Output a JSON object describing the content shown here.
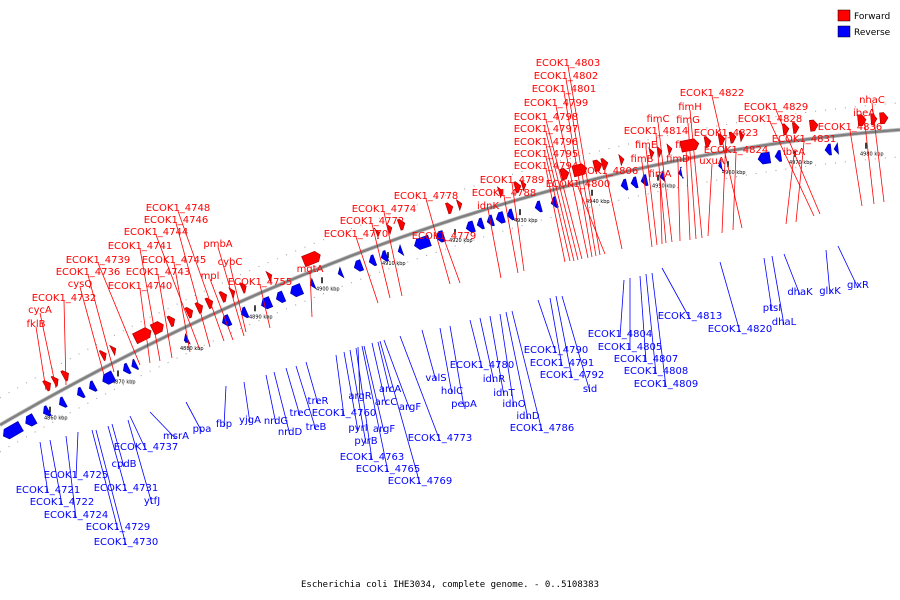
{
  "caption": "Escherichia coli IHE3034, complete genome. - 0..5108383",
  "legend": [
    {
      "label": "Forward",
      "color": "#ff0000"
    },
    {
      "label": "Reverse",
      "color": "#0000ff"
    }
  ],
  "colors": {
    "forward": "#ff0000",
    "reverse": "#0000ff",
    "backbone": "#808080"
  },
  "ticks": [
    "4860 kbp",
    "4870 kbp",
    "4880 kbp",
    "4890 kbp",
    "4900 kbp",
    "4910 kbp",
    "4920 kbp",
    "4930 kbp",
    "4940 kbp",
    "4950 kbp",
    "4960 kbp",
    "4970 kbp",
    "4980 kbp"
  ],
  "forward_labels": [
    "fklB",
    "cycA",
    "ECOK1_4732",
    "cysQ",
    "ECOK1_4736",
    "ECOK1_4739",
    "ECOK1_4740",
    "ECOK1_4741",
    "ECOK1_4743",
    "ECOK1_4745",
    "ECOK1_4744",
    "ECOK1_4746",
    "ECOK1_4748",
    "mpl",
    "pmbA",
    "cybC",
    "ECOK1_4755",
    "mgtA",
    "ECOK1_4770",
    "ECOK1_4772",
    "ECOK1_4774",
    "ECOK1_4778",
    "ECOK1_4779",
    "idnK",
    "ECOK1_4788",
    "ECOK1_4789",
    "ECOK1_4794",
    "ECOK1_4795",
    "ECOK1_4796",
    "ECOK1_4797",
    "ECOK1_4798",
    "ECOK1_4799",
    "ECOK1_4801",
    "ECOK1_4802",
    "ECOK1_4803",
    "ECOK1_4800",
    "ECOK1_4806",
    "fimB",
    "fimE",
    "fimA",
    "ECOK1_4814",
    "fimC",
    "fimD",
    "fimF",
    "fimG",
    "fimH",
    "uxuA",
    "ECOK1_4823",
    "ECOK1_4824",
    "ECOK1_4822",
    "ibeA",
    "ECOK1_4831",
    "ECOK1_4828",
    "ECOK1_4829",
    "ECOK1_4836",
    "ibeA",
    "nhaC"
  ],
  "reverse_labels": [
    "ECOK1_4721",
    "ECOK1_4722",
    "ECOK1_4724",
    "ECOK1_4725",
    "ECOK1_4729",
    "ECOK1_4730",
    "ECOK1_4731",
    "cpdB",
    "ytfJ",
    "ECOK1_4737",
    "msrA",
    "ppa",
    "fbp",
    "yjgA",
    "nrdG",
    "nrdD",
    "treC",
    "treB",
    "treR",
    "ECOK1_4760",
    "pyrI",
    "pyrB",
    "argR",
    "argF",
    "arcC",
    "arcA",
    "argF",
    "ECOK1_4763",
    "ECOK1_4765",
    "ECOK1_4769",
    "ECOK1_4773",
    "valS",
    "holC",
    "pepA",
    "ECOK1_4780",
    "idnR",
    "idnT",
    "idnO",
    "idnD",
    "ECOK1_4786",
    "ECOK1_4790",
    "ECOK1_4791",
    "ECOK1_4792",
    "sid",
    "ECOK1_4804",
    "ECOK1_4805",
    "ECOK1_4807",
    "ECOK1_4808",
    "ECOK1_4809",
    "ECOK1_4813",
    "ECOK1_4820",
    "ptsI",
    "dhaL",
    "dhaK",
    "glxK",
    "glxR"
  ]
}
